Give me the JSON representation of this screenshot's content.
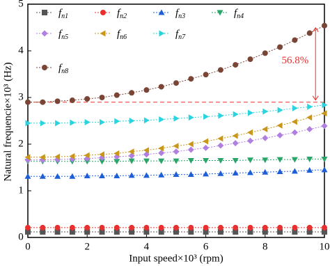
{
  "chart_data": {
    "type": "line",
    "x": [
      0,
      0.5,
      1,
      1.5,
      2,
      2.5,
      3,
      3.5,
      4,
      4.5,
      5,
      5.5,
      6,
      6.5,
      7,
      7.5,
      8,
      8.5,
      9,
      9.5,
      10
    ],
    "xlabel": "Input speed×10³ (rpm)",
    "ylabel": "Natural frequencie×10³ (Hz)",
    "xlim": [
      0,
      10
    ],
    "ylim": [
      0,
      5
    ],
    "xticks": [
      0,
      2,
      4,
      6,
      8,
      10
    ],
    "yticks": [
      0,
      1,
      2,
      3,
      4,
      5
    ],
    "series": [
      {
        "name": "fn1",
        "color": "#555555",
        "marker": "square",
        "values": [
          0.12,
          0.12,
          0.12,
          0.12,
          0.12,
          0.12,
          0.12,
          0.12,
          0.12,
          0.12,
          0.12,
          0.12,
          0.12,
          0.12,
          0.12,
          0.12,
          0.12,
          0.12,
          0.12,
          0.12,
          0.12
        ]
      },
      {
        "name": "fn2",
        "color": "#e8312f",
        "marker": "circle",
        "values": [
          0.21,
          0.21,
          0.21,
          0.21,
          0.21,
          0.21,
          0.21,
          0.21,
          0.21,
          0.21,
          0.21,
          0.21,
          0.21,
          0.21,
          0.21,
          0.21,
          0.21,
          0.21,
          0.21,
          0.21,
          0.21
        ]
      },
      {
        "name": "fn3",
        "color": "#1f5fd6",
        "marker": "triangle-up",
        "values": [
          1.31,
          1.31,
          1.31,
          1.31,
          1.32,
          1.32,
          1.32,
          1.33,
          1.33,
          1.34,
          1.35,
          1.35,
          1.36,
          1.37,
          1.38,
          1.39,
          1.4,
          1.41,
          1.42,
          1.44,
          1.45
        ]
      },
      {
        "name": "fn4",
        "color": "#2aa56a",
        "marker": "triangle-down",
        "values": [
          1.63,
          1.63,
          1.63,
          1.63,
          1.63,
          1.63,
          1.63,
          1.64,
          1.64,
          1.64,
          1.64,
          1.65,
          1.65,
          1.65,
          1.65,
          1.66,
          1.66,
          1.67,
          1.67,
          1.68,
          1.68
        ]
      },
      {
        "name": "fn5",
        "color": "#b07fe0",
        "marker": "diamond",
        "values": [
          1.66,
          1.66,
          1.67,
          1.68,
          1.69,
          1.71,
          1.73,
          1.75,
          1.78,
          1.81,
          1.84,
          1.88,
          1.92,
          1.97,
          2.02,
          2.07,
          2.13,
          2.19,
          2.25,
          2.32,
          2.39
        ]
      },
      {
        "name": "fn6",
        "color": "#c9961a",
        "marker": "triangle-left",
        "values": [
          1.72,
          1.72,
          1.73,
          1.74,
          1.76,
          1.78,
          1.8,
          1.84,
          1.87,
          1.91,
          1.96,
          2.0,
          2.06,
          2.12,
          2.18,
          2.25,
          2.32,
          2.4,
          2.48,
          2.57,
          2.66
        ]
      },
      {
        "name": "fn7",
        "color": "#2ad3e0",
        "marker": "triangle-right",
        "values": [
          2.45,
          2.45,
          2.45,
          2.46,
          2.47,
          2.47,
          2.49,
          2.5,
          2.51,
          2.53,
          2.55,
          2.57,
          2.59,
          2.61,
          2.64,
          2.67,
          2.7,
          2.73,
          2.77,
          2.8,
          2.84
        ]
      },
      {
        "name": "fn8",
        "color": "#7a4535",
        "marker": "circle",
        "values": [
          2.9,
          2.9,
          2.92,
          2.94,
          2.97,
          3.0,
          3.05,
          3.1,
          3.16,
          3.23,
          3.31,
          3.4,
          3.49,
          3.59,
          3.7,
          3.82,
          3.95,
          4.08,
          4.23,
          4.38,
          4.54
        ]
      }
    ],
    "reference_line": 2.9,
    "annotation": "56.8%",
    "annotation_color": "#e8312f"
  }
}
